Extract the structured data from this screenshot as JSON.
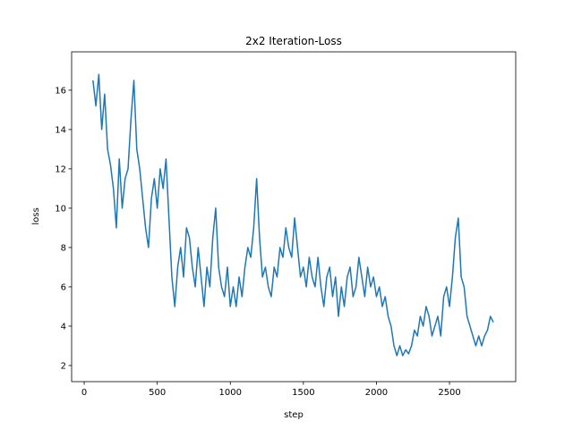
{
  "chart_data": {
    "type": "line",
    "title": "2x2 Iteration-Loss",
    "x_label": "step",
    "y_label": "loss",
    "color": "#1f77b4",
    "x": [
      60,
      80,
      100,
      120,
      140,
      160,
      180,
      200,
      220,
      240,
      260,
      280,
      300,
      320,
      340,
      360,
      380,
      400,
      420,
      440,
      460,
      480,
      500,
      520,
      540,
      560,
      580,
      600,
      620,
      640,
      660,
      680,
      700,
      720,
      740,
      760,
      780,
      800,
      820,
      840,
      860,
      880,
      900,
      920,
      940,
      960,
      980,
      1000,
      1020,
      1040,
      1060,
      1080,
      1100,
      1120,
      1140,
      1160,
      1180,
      1200,
      1220,
      1240,
      1260,
      1280,
      1300,
      1320,
      1340,
      1360,
      1380,
      1400,
      1420,
      1440,
      1460,
      1480,
      1500,
      1520,
      1540,
      1560,
      1580,
      1600,
      1620,
      1640,
      1660,
      1680,
      1700,
      1720,
      1740,
      1760,
      1780,
      1800,
      1820,
      1840,
      1860,
      1880,
      1900,
      1920,
      1940,
      1960,
      1980,
      2000,
      2020,
      2040,
      2060,
      2080,
      2100,
      2120,
      2140,
      2160,
      2180,
      2200,
      2220,
      2240,
      2260,
      2280,
      2300,
      2320,
      2340,
      2360,
      2380,
      2400,
      2420,
      2440,
      2460,
      2480,
      2500,
      2520,
      2540,
      2560,
      2580,
      2600,
      2620,
      2640,
      2660,
      2680,
      2700,
      2720,
      2740,
      2760,
      2780,
      2800
    ],
    "values": [
      16.5,
      15.2,
      16.8,
      14.0,
      15.8,
      13.0,
      12.2,
      11.0,
      9.0,
      12.5,
      10.0,
      11.5,
      12.0,
      14.5,
      16.5,
      13.0,
      12.0,
      10.5,
      9.0,
      8.0,
      10.5,
      11.5,
      10.0,
      12.0,
      11.0,
      12.5,
      9.5,
      6.5,
      5.0,
      7.0,
      8.0,
      6.5,
      9.0,
      8.5,
      7.0,
      6.0,
      8.0,
      6.5,
      5.0,
      7.0,
      6.0,
      8.5,
      10.0,
      7.0,
      6.0,
      5.5,
      7.0,
      5.0,
      6.0,
      5.0,
      6.5,
      5.5,
      7.0,
      8.0,
      7.5,
      9.0,
      11.5,
      8.5,
      6.5,
      7.0,
      6.0,
      5.5,
      7.0,
      6.5,
      8.0,
      7.5,
      9.0,
      8.0,
      7.5,
      9.5,
      8.0,
      6.5,
      7.0,
      6.0,
      7.5,
      6.5,
      6.0,
      7.5,
      6.0,
      5.0,
      6.5,
      7.0,
      5.5,
      6.5,
      4.5,
      6.0,
      5.0,
      6.5,
      7.0,
      5.5,
      6.0,
      7.5,
      6.5,
      5.5,
      7.0,
      6.0,
      6.5,
      5.5,
      6.0,
      5.0,
      5.5,
      4.5,
      4.0,
      3.0,
      2.5,
      3.0,
      2.5,
      2.8,
      2.6,
      3.0,
      3.8,
      3.5,
      4.5,
      4.0,
      5.0,
      4.5,
      3.5,
      4.0,
      4.5,
      3.5,
      5.5,
      6.0,
      5.0,
      6.5,
      8.5,
      9.5,
      6.5,
      6.0,
      4.5,
      4.0,
      3.5,
      3.0,
      3.5,
      3.0,
      3.5,
      3.8,
      4.5,
      4.2
    ],
    "xlim": [
      -86,
      2953
    ],
    "ylim": [
      1.18,
      17.95
    ],
    "xticks": [
      0,
      500,
      1000,
      1500,
      2000,
      2500
    ],
    "yticks": [
      2,
      4,
      6,
      8,
      10,
      12,
      14,
      16
    ]
  }
}
